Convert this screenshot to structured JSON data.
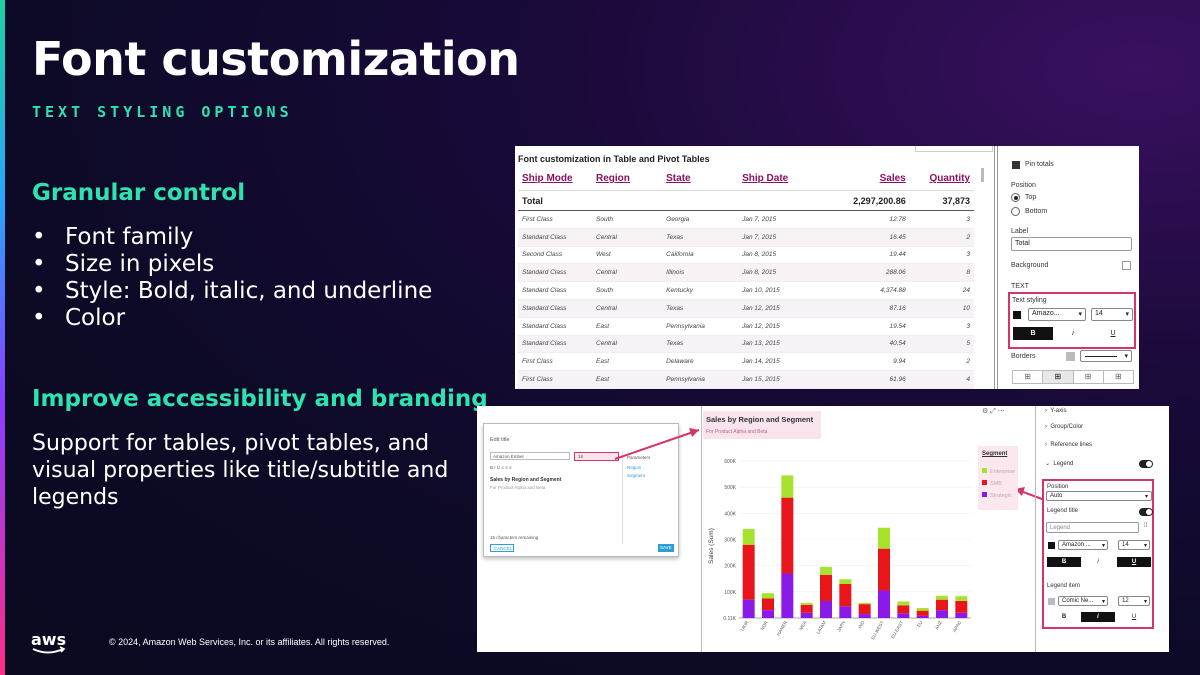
{
  "slide": {
    "title": "Font customization",
    "subtitle": "TEXT STYLING OPTIONS",
    "section1_heading": "Granular control",
    "bullets": [
      "Font family",
      "Size in pixels",
      "Style: Bold, italic, and underline",
      "Color"
    ],
    "section2_heading": "Improve accessibility and branding",
    "body": "Support for tables, pivot tables, and visual properties like title/subtitle and legends",
    "logo_text": "aws",
    "copyright": "© 2024, Amazon Web Services, Inc. or its affiliates. All rights reserved.",
    "colors": {
      "accent": "#2fe3b0",
      "highlight": "#d6336c",
      "table_header": "#8b1060"
    }
  },
  "table_shot": {
    "title": "Font customization in Table and Pivot Tables",
    "headers": [
      "Ship Mode",
      "Region",
      "State",
      "Ship Date",
      "Sales",
      "Quantity"
    ],
    "total": {
      "label": "Total",
      "sales": "2,297,200.86",
      "quantity": "37,873"
    },
    "rows": [
      [
        "First Class",
        "South",
        "Georgia",
        "Jan 7, 2015",
        "12.78",
        "3"
      ],
      [
        "Standard Class",
        "Central",
        "Texas",
        "Jan 7, 2015",
        "16.45",
        "2"
      ],
      [
        "Second Class",
        "West",
        "California",
        "Jan 8, 2015",
        "19.44",
        "3"
      ],
      [
        "Standard Class",
        "Central",
        "Illinois",
        "Jan 8, 2015",
        "288.06",
        "8"
      ],
      [
        "Standard Class",
        "South",
        "Kentucky",
        "Jan 10, 2015",
        "4,374.88",
        "24"
      ],
      [
        "Standard Class",
        "Central",
        "Texas",
        "Jan 12, 2015",
        "87.16",
        "10"
      ],
      [
        "Standard Class",
        "East",
        "Pennsylvania",
        "Jan 12, 2015",
        "19.54",
        "3"
      ],
      [
        "Standard Class",
        "Central",
        "Texas",
        "Jan 13, 2015",
        "40.54",
        "5"
      ],
      [
        "First Class",
        "East",
        "Delaware",
        "Jan 14, 2015",
        "9.94",
        "2"
      ],
      [
        "First Class",
        "East",
        "Pennsylvania",
        "Jan 15, 2015",
        "61.96",
        "4"
      ]
    ],
    "panel": {
      "pin_totals": "Pin totals",
      "position_label": "Position",
      "position_top": "Top",
      "position_bottom": "Bottom",
      "label_label": "Label",
      "label_value": "Total",
      "background_label": "Background",
      "text_label": "TEXT",
      "text_styling_label": "Text styling",
      "font_value": "Amazo...",
      "size_value": "14",
      "bold": "B",
      "italic": "i",
      "underline": "U",
      "borders_label": "Borders"
    }
  },
  "chart_shot": {
    "dialog": {
      "title": "Edit title",
      "font_value": "Amazon Ember",
      "size_value": "16",
      "chart_title": "Sales by Region and Segment",
      "chart_subtitle": "For Product Alpha and Beta",
      "chars_remaining": "15 characters remaining",
      "cancel": "CANCEL",
      "save": "SAVE",
      "parameters_label": "Parameters",
      "param_items": [
        "Region",
        "Segment"
      ]
    },
    "chart_title": "Sales by Region and Segment",
    "chart_subtitle": "For Product Alpha and Beta",
    "legend_title": "Segment",
    "ylabel": "Sales (Sum)",
    "panel": {
      "items": [
        "Y-axis",
        "Group/Color",
        "Reference lines",
        "Legend"
      ],
      "position_label": "Position",
      "position_value": "Auto",
      "legend_title_label": "Legend title",
      "legend_placeholder": "Legend",
      "font_value": "Amazon ...",
      "size_value": "14",
      "legend_item_label": "Legend item",
      "item_font_value": "Comic Ne...",
      "item_size_value": "12",
      "bold": "B",
      "italic": "i",
      "underline": "U"
    }
  },
  "chart_data": {
    "type": "bar",
    "title": "Sales by Region and Segment",
    "subtitle": "For Product Alpha and Beta",
    "xlabel": "",
    "ylabel": "Sales (Sum)",
    "ylim": [
      0,
      600000
    ],
    "yticks": [
      "0.11K",
      "100K",
      "200K",
      "300K",
      "400K",
      "500K",
      "600K"
    ],
    "categories": [
      "UKIR",
      "NOR",
      "NAMER",
      "MEA",
      "LATAM",
      "JAPN",
      "IND",
      "EU-WEST",
      "EU-EAST",
      "EU",
      "ANZ",
      "APAC"
    ],
    "series": [
      {
        "name": "Enterprise",
        "color": "#a6e22e",
        "values": [
          60000,
          20000,
          85000,
          8000,
          30000,
          18000,
          5000,
          80000,
          15000,
          10000,
          15000,
          18000
        ]
      },
      {
        "name": "SMB",
        "color": "#e8161a",
        "values": [
          210000,
          45000,
          290000,
          30000,
          100000,
          85000,
          38000,
          160000,
          30000,
          20000,
          40000,
          45000
        ]
      },
      {
        "name": "Strategic",
        "color": "#8b19e8",
        "values": [
          70000,
          30000,
          170000,
          20000,
          65000,
          45000,
          15000,
          105000,
          18000,
          8000,
          30000,
          20000
        ]
      }
    ],
    "legend": "right"
  }
}
